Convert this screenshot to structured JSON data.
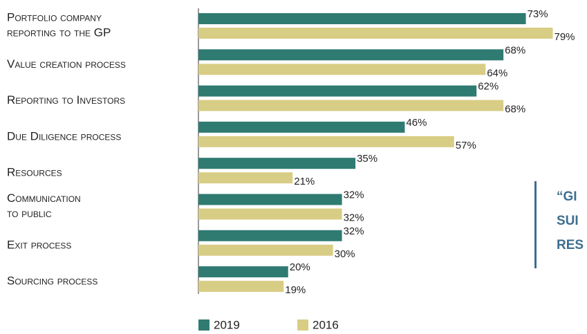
{
  "chart_data": {
    "type": "bar",
    "orientation": "horizontal",
    "categories": [
      [
        "Portfolio company",
        "reporting to the GP"
      ],
      [
        "Value creation process"
      ],
      [
        "Reporting to Investors"
      ],
      [
        "Due Diligence process"
      ],
      [
        "Resources"
      ],
      [
        "Communication",
        "to public"
      ],
      [
        "Exit process"
      ],
      [
        "Sourcing process"
      ]
    ],
    "series": [
      {
        "name": "2019",
        "color": "#2f7b72",
        "values": [
          73,
          68,
          62,
          46,
          35,
          32,
          32,
          20
        ],
        "value_labels": [
          "73%",
          "68%",
          "62%",
          "46%",
          "35%",
          "32%",
          "32%",
          "20%"
        ]
      },
      {
        "name": "2016",
        "color": "#d8cd85",
        "values": [
          79,
          64,
          68,
          57,
          21,
          32,
          30,
          19
        ],
        "value_labels": [
          "79%",
          "64%",
          "68%",
          "57%",
          "21%",
          "32%",
          "30%",
          "19%"
        ]
      }
    ],
    "xlim": [
      0,
      80
    ],
    "annotation": [
      "“GI",
      "SUI",
      "RES"
    ]
  }
}
